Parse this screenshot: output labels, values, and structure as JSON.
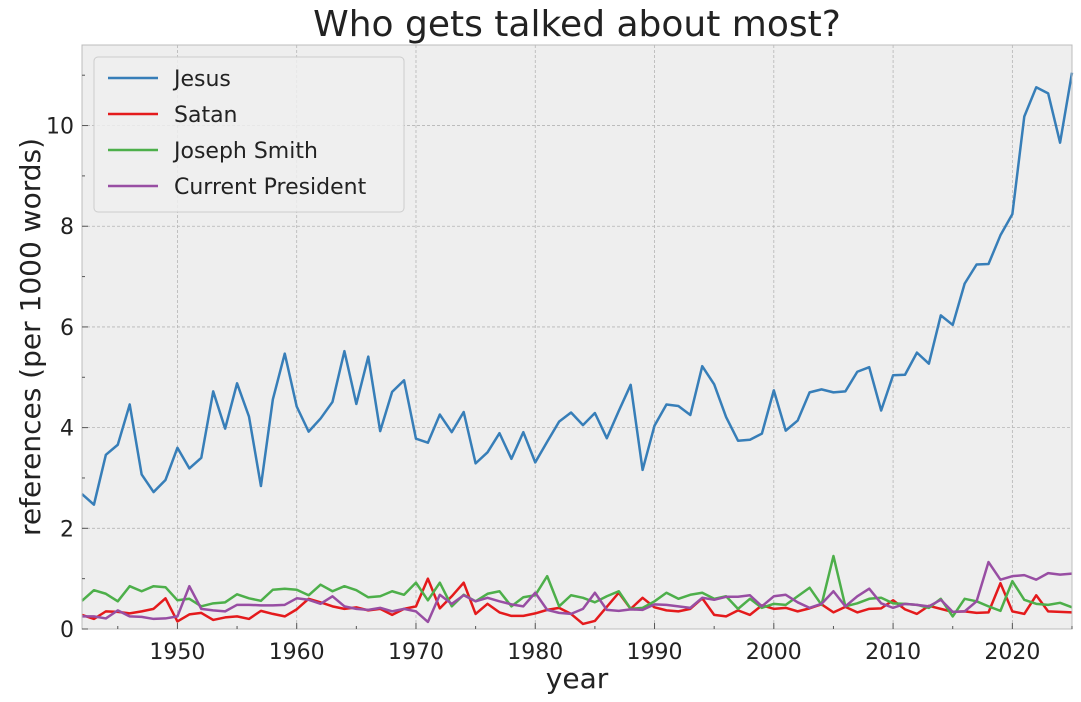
{
  "chart_data": {
    "type": "line",
    "title": "Who gets talked about most?",
    "xlabel": "year",
    "ylabel": "references (per 1000 words)",
    "xlim": [
      1942,
      2025
    ],
    "ylim": [
      0,
      11.6
    ],
    "x_ticks": [
      1950,
      1960,
      1970,
      1980,
      1990,
      2000,
      2010,
      2020
    ],
    "y_ticks": [
      0,
      2,
      4,
      6,
      8,
      10
    ],
    "grid": true,
    "legend_position": "top-left",
    "x": [
      1942,
      1943,
      1944,
      1945,
      1946,
      1947,
      1948,
      1949,
      1950,
      1951,
      1952,
      1953,
      1954,
      1955,
      1956,
      1957,
      1958,
      1959,
      1960,
      1961,
      1962,
      1963,
      1964,
      1965,
      1966,
      1967,
      1968,
      1969,
      1970,
      1971,
      1972,
      1973,
      1974,
      1975,
      1976,
      1977,
      1978,
      1979,
      1980,
      1981,
      1982,
      1983,
      1984,
      1985,
      1986,
      1987,
      1988,
      1989,
      1990,
      1991,
      1992,
      1993,
      1994,
      1995,
      1996,
      1997,
      1998,
      1999,
      2000,
      2001,
      2002,
      2003,
      2004,
      2005,
      2006,
      2007,
      2008,
      2009,
      2010,
      2011,
      2012,
      2013,
      2014,
      2015,
      2016,
      2017,
      2018,
      2019,
      2020,
      2021,
      2022,
      2023,
      2024,
      2025
    ],
    "series": [
      {
        "name": "Jesus",
        "color": "#377eb8",
        "values": [
          2.68,
          2.47,
          3.46,
          3.66,
          4.46,
          3.07,
          2.72,
          2.96,
          3.6,
          3.19,
          3.4,
          4.72,
          3.98,
          4.88,
          4.22,
          2.84,
          4.56,
          5.47,
          4.42,
          3.92,
          4.18,
          4.51,
          5.52,
          4.47,
          5.41,
          3.93,
          4.71,
          4.94,
          3.78,
          3.7,
          4.26,
          3.91,
          4.31,
          3.29,
          3.51,
          3.89,
          3.38,
          3.91,
          3.31,
          3.72,
          4.12,
          4.3,
          4.05,
          4.29,
          3.79,
          4.33,
          4.85,
          3.16,
          4.04,
          4.46,
          4.43,
          4.25,
          5.22,
          4.86,
          4.21,
          3.74,
          3.76,
          3.88,
          4.74,
          3.94,
          4.14,
          4.7,
          4.76,
          4.7,
          4.72,
          5.11,
          5.2,
          4.34,
          5.04,
          5.05,
          5.49,
          5.27,
          6.23,
          6.04,
          6.86,
          7.24,
          7.25,
          7.82,
          8.24,
          10.18,
          10.76,
          10.64,
          9.66,
          11.05
        ]
      },
      {
        "name": "Satan",
        "color": "#e41a1c",
        "values": [
          0.28,
          0.2,
          0.35,
          0.34,
          0.31,
          0.35,
          0.4,
          0.61,
          0.15,
          0.29,
          0.32,
          0.18,
          0.23,
          0.25,
          0.2,
          0.36,
          0.3,
          0.25,
          0.39,
          0.6,
          0.53,
          0.45,
          0.4,
          0.43,
          0.37,
          0.4,
          0.28,
          0.4,
          0.45,
          1.0,
          0.41,
          0.65,
          0.92,
          0.3,
          0.5,
          0.33,
          0.26,
          0.26,
          0.31,
          0.38,
          0.42,
          0.3,
          0.1,
          0.16,
          0.44,
          0.72,
          0.4,
          0.62,
          0.43,
          0.37,
          0.35,
          0.4,
          0.61,
          0.28,
          0.25,
          0.37,
          0.28,
          0.47,
          0.4,
          0.42,
          0.35,
          0.41,
          0.49,
          0.33,
          0.44,
          0.33,
          0.4,
          0.41,
          0.57,
          0.39,
          0.3,
          0.46,
          0.4,
          0.34,
          0.35,
          0.32,
          0.33,
          0.91,
          0.35,
          0.3,
          0.67,
          0.35,
          0.34,
          0.33
        ]
      },
      {
        "name": "Joseph Smith",
        "color": "#4daf4a",
        "values": [
          0.56,
          0.77,
          0.7,
          0.55,
          0.85,
          0.75,
          0.85,
          0.83,
          0.57,
          0.6,
          0.45,
          0.51,
          0.53,
          0.69,
          0.61,
          0.56,
          0.78,
          0.8,
          0.78,
          0.67,
          0.88,
          0.75,
          0.85,
          0.77,
          0.63,
          0.65,
          0.75,
          0.68,
          0.92,
          0.57,
          0.92,
          0.45,
          0.68,
          0.55,
          0.7,
          0.75,
          0.45,
          0.63,
          0.67,
          1.05,
          0.45,
          0.67,
          0.62,
          0.53,
          0.65,
          0.75,
          0.4,
          0.42,
          0.55,
          0.72,
          0.6,
          0.68,
          0.72,
          0.6,
          0.65,
          0.4,
          0.6,
          0.42,
          0.5,
          0.48,
          0.65,
          0.82,
          0.48,
          1.45,
          0.45,
          0.51,
          0.6,
          0.62,
          0.51,
          0.5,
          0.48,
          0.42,
          0.6,
          0.25,
          0.6,
          0.55,
          0.45,
          0.36,
          0.95,
          0.58,
          0.5,
          0.48,
          0.52,
          0.43
        ]
      },
      {
        "name": "Current President",
        "color": "#984ea3",
        "values": [
          0.25,
          0.25,
          0.21,
          0.37,
          0.25,
          0.24,
          0.2,
          0.21,
          0.25,
          0.85,
          0.4,
          0.37,
          0.35,
          0.48,
          0.48,
          0.47,
          0.47,
          0.48,
          0.61,
          0.58,
          0.5,
          0.65,
          0.45,
          0.4,
          0.38,
          0.42,
          0.35,
          0.4,
          0.35,
          0.14,
          0.68,
          0.5,
          0.67,
          0.55,
          0.62,
          0.55,
          0.49,
          0.45,
          0.72,
          0.38,
          0.32,
          0.3,
          0.4,
          0.72,
          0.38,
          0.36,
          0.39,
          0.38,
          0.49,
          0.48,
          0.45,
          0.42,
          0.62,
          0.58,
          0.64,
          0.64,
          0.67,
          0.45,
          0.65,
          0.68,
          0.53,
          0.42,
          0.5,
          0.75,
          0.45,
          0.65,
          0.8,
          0.51,
          0.42,
          0.5,
          0.48,
          0.45,
          0.58,
          0.34,
          0.35,
          0.55,
          1.33,
          0.98,
          1.05,
          1.07,
          0.98,
          1.11,
          1.08,
          1.1
        ]
      }
    ]
  },
  "colors": {
    "plot_background": "#eeeeee",
    "grid": "#b5b5b5",
    "axes_edge": "#bcbcbc"
  }
}
